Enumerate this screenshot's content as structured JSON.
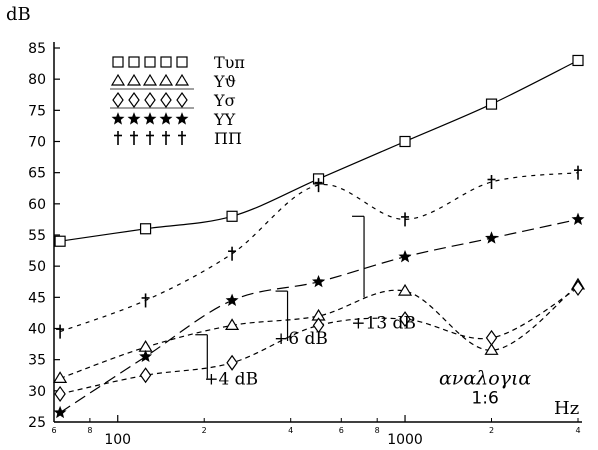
{
  "chart_data": {
    "type": "line",
    "ylabel": "dB",
    "xlabel": "Hz",
    "x_scale": "log",
    "xlim": [
      60,
      4000
    ],
    "ylim": [
      25,
      85
    ],
    "y_ticks": [
      25,
      30,
      35,
      40,
      45,
      50,
      55,
      60,
      65,
      70,
      75,
      80,
      85
    ],
    "x_major_ticks": [
      {
        "value": 100,
        "label": "100"
      },
      {
        "value": 1000,
        "label": "1000"
      }
    ],
    "x_minor_ticks": [
      {
        "value": 60,
        "label": "6"
      },
      {
        "value": 80,
        "label": "8"
      },
      {
        "value": 200,
        "label": "2"
      },
      {
        "value": 400,
        "label": "4"
      },
      {
        "value": 600,
        "label": "6"
      },
      {
        "value": 800,
        "label": "8"
      },
      {
        "value": 2000,
        "label": "2"
      },
      {
        "value": 4000,
        "label": "4"
      }
    ],
    "grid": false,
    "legend_position": "top-left",
    "series": [
      {
        "name": "Τυπ",
        "marker": "square",
        "line": "solid",
        "x": [
          63,
          125,
          250,
          500,
          1000,
          2000,
          4000
        ],
        "y": [
          54,
          56,
          58,
          64,
          70,
          76,
          83
        ]
      },
      {
        "name": "Υϑ",
        "marker": "triangle",
        "line": "dashed",
        "x": [
          63,
          125,
          250,
          500,
          1000,
          2000,
          4000
        ],
        "y": [
          32,
          37,
          40.5,
          42,
          46,
          36.5,
          47
        ]
      },
      {
        "name": "Υσ",
        "marker": "diamond",
        "line": "dashed",
        "x": [
          63,
          125,
          250,
          500,
          1000,
          2000,
          4000
        ],
        "y": [
          29.5,
          32.5,
          34.5,
          40.5,
          41.5,
          38.5,
          46.5
        ]
      },
      {
        "name": "ΥΥ",
        "marker": "star",
        "line": "longdash",
        "x": [
          63,
          125,
          250,
          500,
          1000,
          2000,
          4000
        ],
        "y": [
          26.5,
          35.5,
          44.5,
          47.5,
          51.5,
          54.5,
          57.5
        ]
      },
      {
        "name": "ΠΠ",
        "marker": "dagger",
        "line": "shortdash",
        "x": [
          63,
          125,
          250,
          500,
          1000,
          2000,
          4000
        ],
        "y": [
          39.5,
          44.5,
          52,
          63,
          57.5,
          63.5,
          65
        ]
      }
    ],
    "annotations": [
      {
        "text": "+4 dB",
        "x": 200,
        "y": 31
      },
      {
        "text": "+6 dB",
        "x": 350,
        "y": 37.5
      },
      {
        "text": "+13 dB",
        "x": 650,
        "y": 40
      },
      {
        "text": "αναλογια",
        "x": 1900,
        "y": 31
      },
      {
        "text": "1:6",
        "x": 1900,
        "y": 28
      }
    ],
    "brackets": [
      {
        "x": 205,
        "y_from": 32,
        "y_to": 39
      },
      {
        "x": 390,
        "y_from": 38,
        "y_to": 46
      },
      {
        "x": 720,
        "y_from": 45,
        "y_to": 58
      }
    ]
  }
}
